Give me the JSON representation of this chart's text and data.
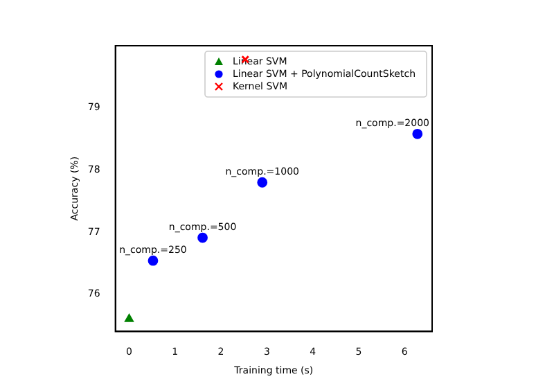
{
  "chart_data": {
    "type": "scatter",
    "xlabel": "Training time (s)",
    "ylabel": "Accuracy (%)",
    "xlim": [
      -0.3,
      6.6
    ],
    "ylim": [
      75.4,
      80.0
    ],
    "xticks": [
      0,
      1,
      2,
      3,
      4,
      5,
      6
    ],
    "yticks": [
      76,
      77,
      78,
      79
    ],
    "grid": false,
    "legend": "top right",
    "series": [
      {
        "name": "Linear SVM",
        "color": "#008000",
        "marker": "triangle",
        "x": [
          0
        ],
        "values": [
          75.6
        ]
      },
      {
        "name": "Linear SVM + PolynomialCountSketch",
        "color": "#0000ff",
        "marker": "circle",
        "x": [
          0.52,
          1.6,
          2.9,
          6.28
        ],
        "values": [
          76.54,
          76.91,
          77.8,
          78.58
        ]
      },
      {
        "name": "Kernel SVM",
        "color": "#ff0000",
        "marker": "cross",
        "x": [
          2.53
        ],
        "values": [
          79.78
        ]
      }
    ],
    "annotations": [
      {
        "text": "n_comp.=250",
        "x": 0.52,
        "y": 76.54
      },
      {
        "text": "n_comp.=500",
        "x": 1.6,
        "y": 76.91
      },
      {
        "text": "n_comp.=1000",
        "x": 2.9,
        "y": 77.8
      },
      {
        "text": "n_comp.=2000",
        "x": 6.28,
        "y": 78.58
      }
    ]
  }
}
